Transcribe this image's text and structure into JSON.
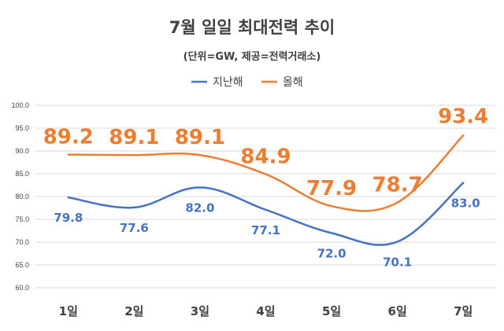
{
  "chart_data": {
    "type": "line",
    "title": "7월 일일 최대전력 추이",
    "subtitle": "(단위=GW, 제공=전력거래소)",
    "categories": [
      "1일",
      "2일",
      "3일",
      "4일",
      "5일",
      "6일",
      "7일"
    ],
    "series": [
      {
        "name": "지난해",
        "color": "#4472c4",
        "values": [
          79.8,
          77.6,
          82.0,
          77.1,
          72.0,
          70.1,
          83.0
        ]
      },
      {
        "name": "올해",
        "color": "#ed7d31",
        "values": [
          89.2,
          89.1,
          89.1,
          84.9,
          77.9,
          78.7,
          93.4
        ]
      }
    ],
    "data_labels": [
      [
        "79.8",
        "77.6",
        "82.0",
        "77.1",
        "72.0",
        "70.1",
        "83.0"
      ],
      [
        "89.2",
        "89.1",
        "89.1",
        "84.9",
        "77.9",
        "78.7",
        "93.4"
      ]
    ],
    "y_ticks": [
      "60.0",
      "65.0",
      "70.0",
      "75.0",
      "80.0",
      "85.0",
      "90.0",
      "95.0",
      "100.0"
    ],
    "ylim": [
      60,
      100
    ],
    "grid": true,
    "legend_position": "top-center"
  }
}
